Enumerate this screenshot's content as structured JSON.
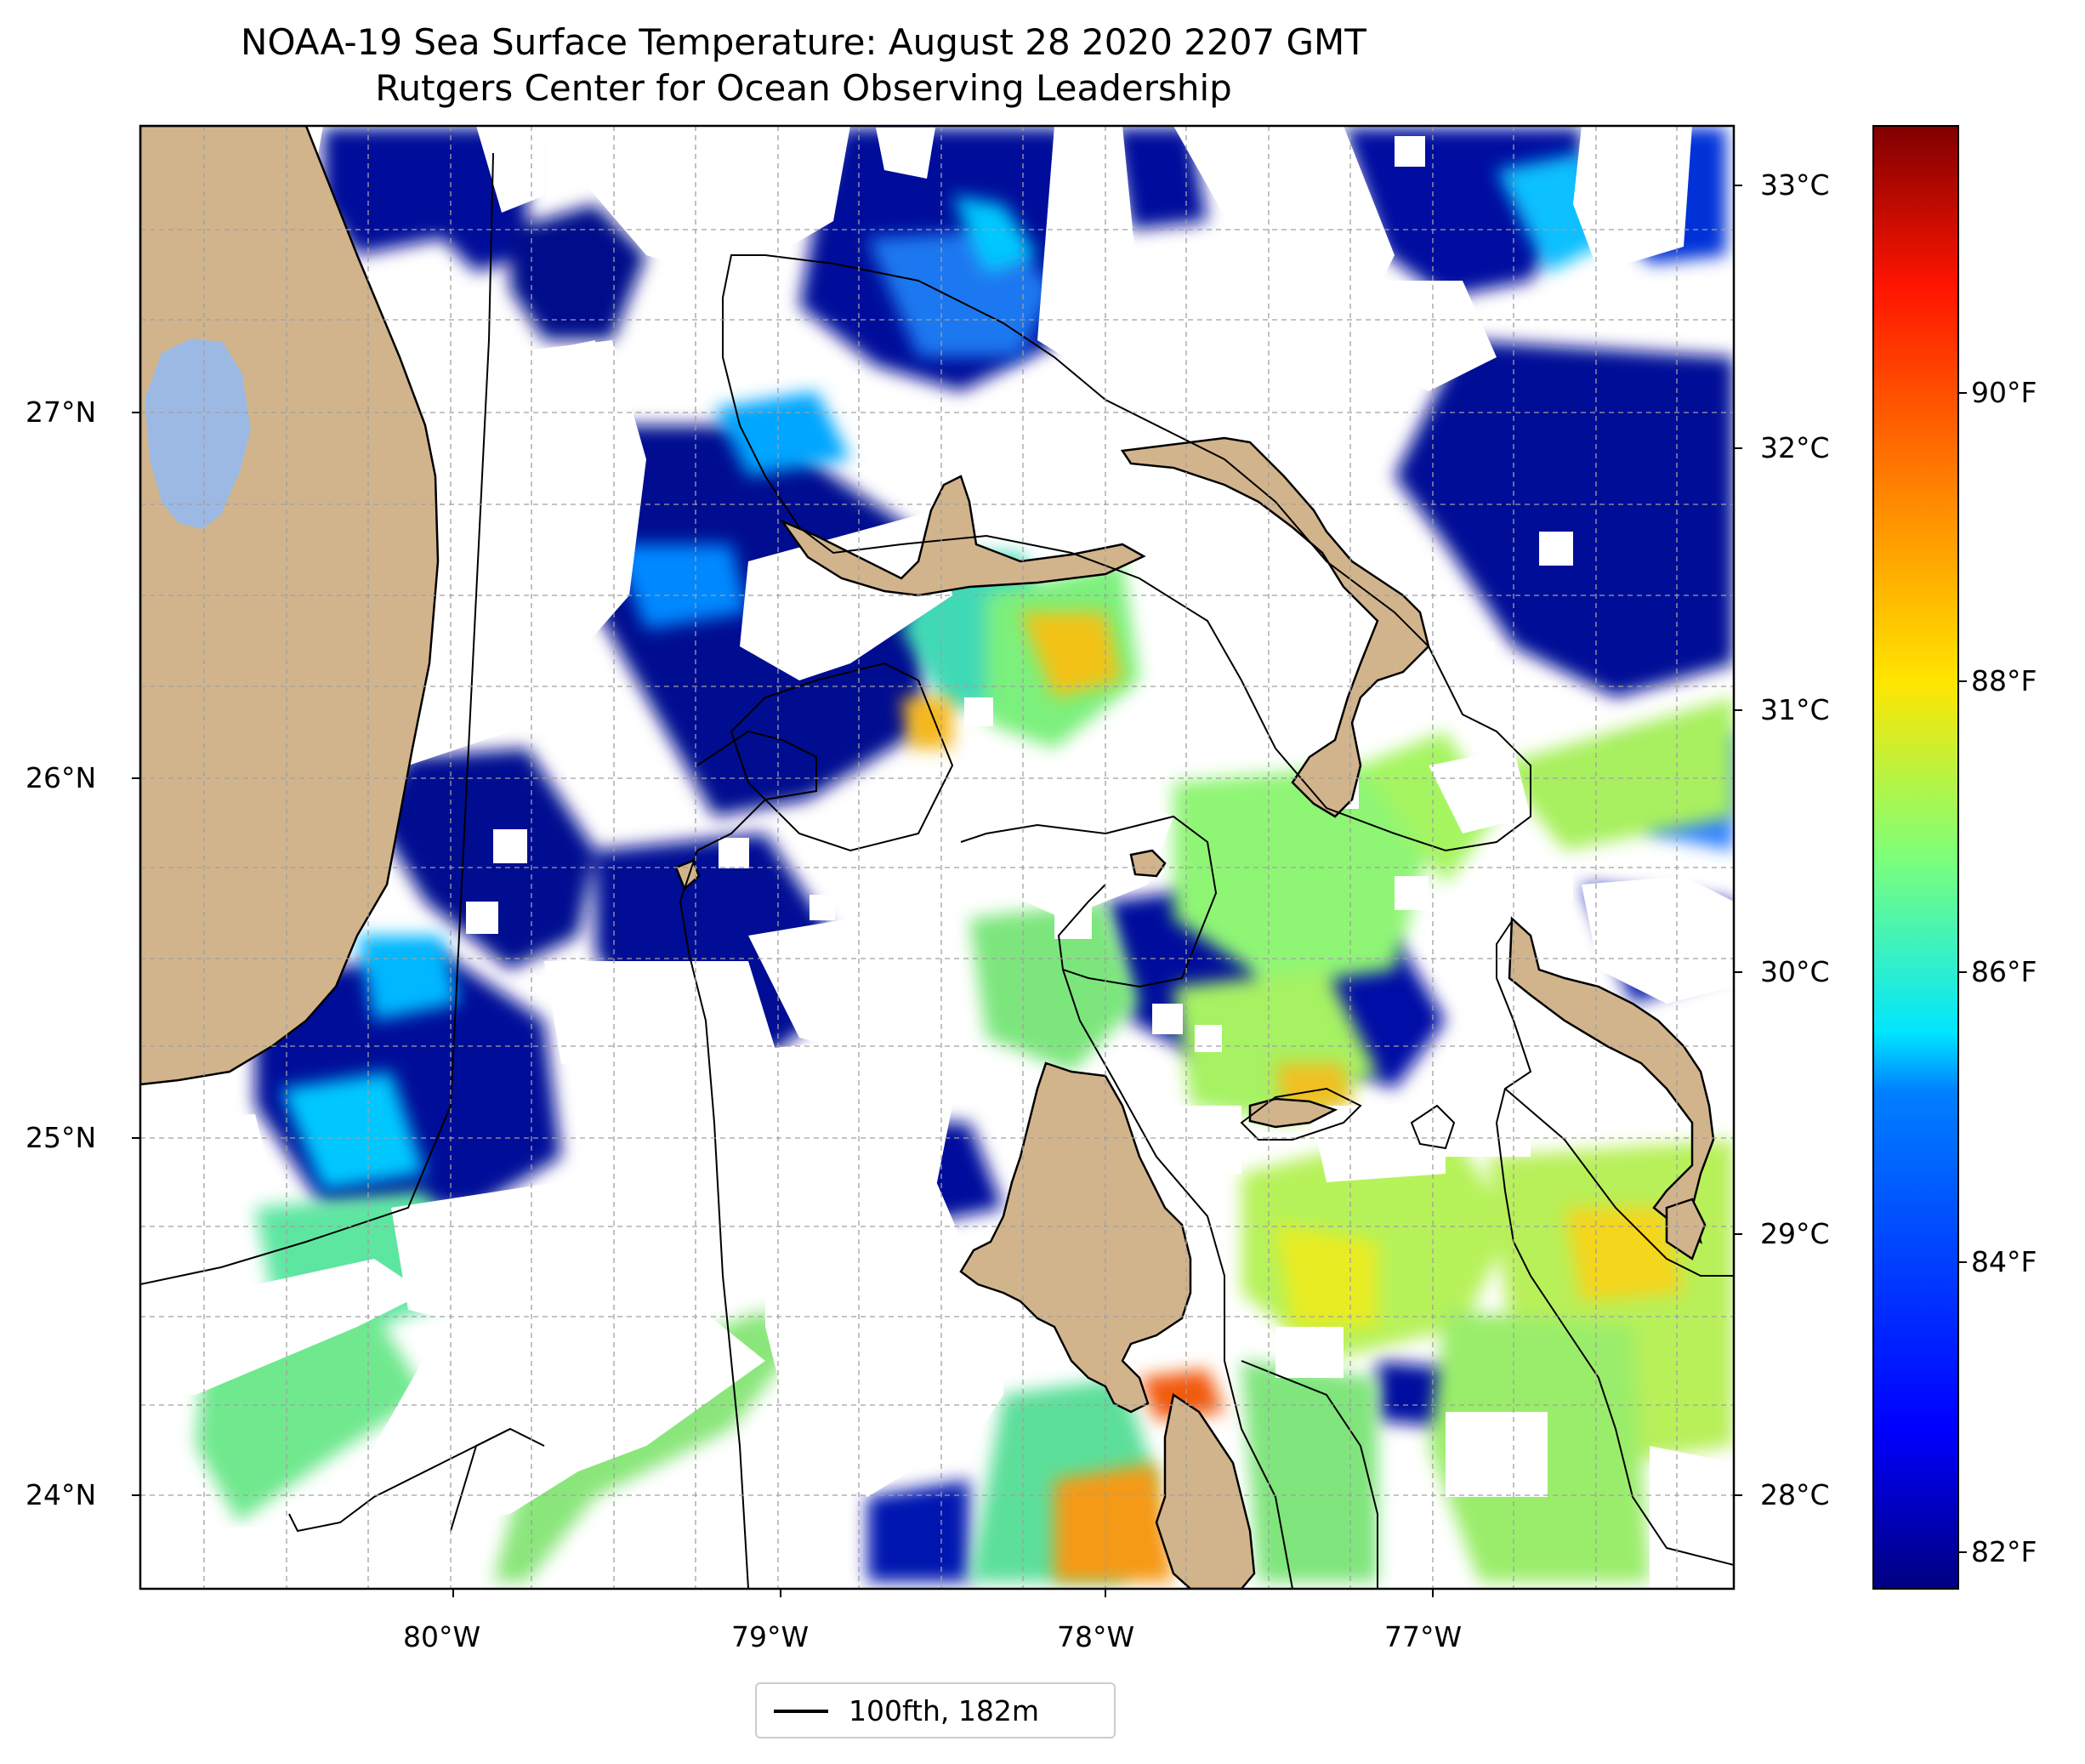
{
  "title": {
    "line1": "NOAA-19 Sea Surface Temperature: August 28 2020 2207 GMT",
    "line2": "Rutgers Center for Ocean Observing Leadership"
  },
  "lat_labels": [
    "27°N",
    "26°N",
    "25°N",
    "24°N"
  ],
  "lon_labels": [
    "80°W",
    "79°W",
    "78°W",
    "77°W"
  ],
  "colorbar": {
    "celsius_labels": [
      "33°C",
      "32°C",
      "31°C",
      "30°C",
      "29°C",
      "28°C"
    ],
    "fahrenheit_labels": [
      "90°F",
      "88°F",
      "86°F",
      "84°F",
      "82°F"
    ],
    "colormap": "jet",
    "colors": [
      "#000080",
      "#0000ff",
      "#0080ff",
      "#00e5ff",
      "#7dff7a",
      "#ffe500",
      "#ff8c00",
      "#ff1500",
      "#800000"
    ]
  },
  "map": {
    "land_color": "#d2b48c",
    "lake_color": "#9cb9e3",
    "missing_data_color": "#ffffff",
    "gridlines": "dashed gray"
  },
  "legend": {
    "label": "100fth, 182m"
  }
}
